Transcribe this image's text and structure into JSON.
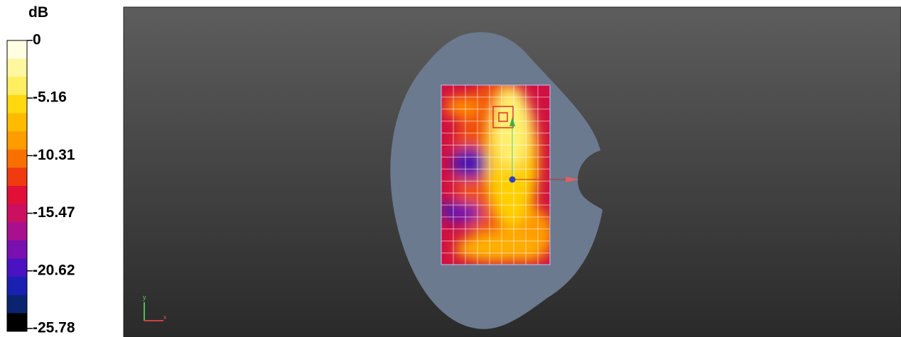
{
  "colorbar": {
    "unit": "dB",
    "ticks": [
      "0",
      "-5.16",
      "-10.31",
      "-15.47",
      "-20.62",
      "-25.78"
    ]
  },
  "axes_icon": {
    "x": "x",
    "y": "y"
  }
}
